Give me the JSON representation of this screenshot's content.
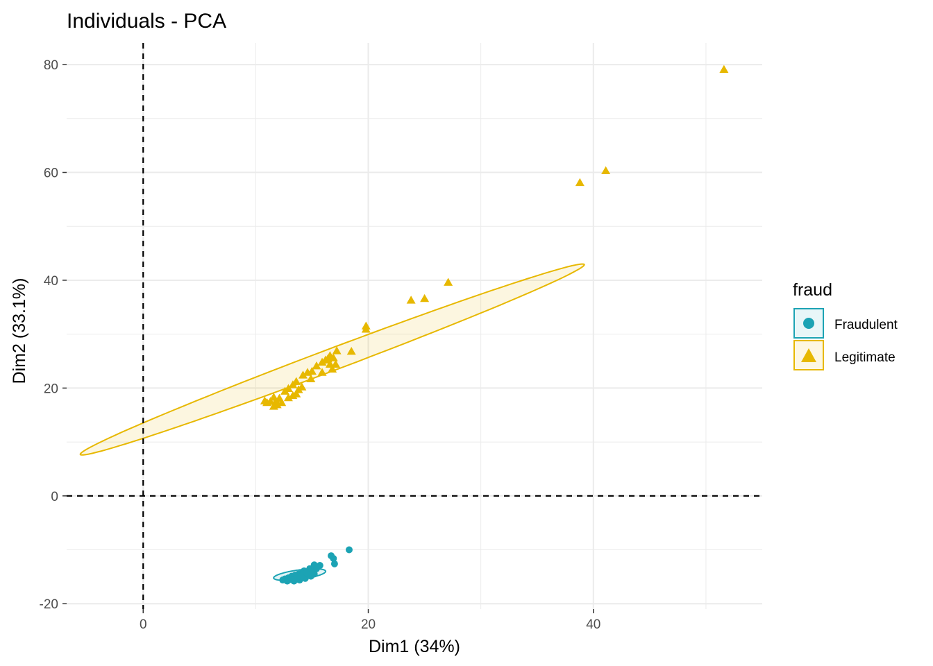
{
  "chart_data": {
    "type": "scatter",
    "title": "Individuals - PCA",
    "xlabel": "Dim1 (34%)",
    "ylabel": "Dim2 (33.1%)",
    "xlim": [
      -6.8,
      55
    ],
    "ylim": [
      -21,
      84
    ],
    "x_ticks": [
      0,
      20,
      40
    ],
    "y_ticks": [
      -20,
      0,
      20,
      40,
      60,
      80
    ],
    "x_tick_labels": [
      "0",
      "20",
      "40"
    ],
    "y_tick_labels": [
      "-20",
      "0",
      "20",
      "40",
      "60",
      "80"
    ],
    "grid": true,
    "reference_lines": {
      "x": 0,
      "y": 0,
      "style": "dashed"
    },
    "legend": {
      "title": "fraud",
      "position": "right"
    },
    "series": [
      {
        "name": "Fraudulent",
        "marker": "circle",
        "color": "#1CA3B4",
        "points": [
          [
            18.3,
            -10.0
          ],
          [
            16.7,
            -11.1
          ],
          [
            16.9,
            -11.6
          ],
          [
            17.0,
            -12.6
          ],
          [
            15.7,
            -12.9
          ],
          [
            15.2,
            -12.8
          ],
          [
            15.4,
            -13.5
          ],
          [
            14.8,
            -13.5
          ],
          [
            14.3,
            -13.9
          ],
          [
            14.1,
            -14.3
          ],
          [
            13.8,
            -14.5
          ],
          [
            13.5,
            -14.7
          ],
          [
            13.2,
            -14.9
          ],
          [
            12.9,
            -15.2
          ],
          [
            12.6,
            -15.4
          ],
          [
            12.4,
            -15.6
          ],
          [
            12.8,
            -15.8
          ],
          [
            13.4,
            -15.8
          ],
          [
            13.9,
            -15.6
          ],
          [
            14.4,
            -15.3
          ],
          [
            14.9,
            -14.9
          ],
          [
            15.2,
            -14.5
          ],
          [
            14.6,
            -14.8
          ],
          [
            14.0,
            -15.1
          ],
          [
            13.6,
            -15.3
          ],
          [
            13.1,
            -15.5
          ],
          [
            14.2,
            -14.6
          ],
          [
            13.7,
            -14.9
          ],
          [
            15.0,
            -14.1
          ],
          [
            14.5,
            -14.2
          ]
        ],
        "ellipse": {
          "cx": 13.9,
          "cy": -14.6,
          "rx": 2.4,
          "ry": 0.85,
          "angle_deg": 17
        }
      },
      {
        "name": "Legitimate",
        "marker": "triangle",
        "color": "#E7B800",
        "points": [
          [
            51.6,
            79.1
          ],
          [
            41.1,
            60.3
          ],
          [
            38.8,
            58.1
          ],
          [
            27.1,
            39.6
          ],
          [
            25.0,
            36.6
          ],
          [
            23.8,
            36.3
          ],
          [
            19.8,
            31.5
          ],
          [
            19.8,
            30.9
          ],
          [
            18.5,
            26.8
          ],
          [
            17.2,
            26.9
          ],
          [
            16.9,
            25.6
          ],
          [
            16.6,
            26.0
          ],
          [
            16.2,
            25.2
          ],
          [
            17.1,
            24.4
          ],
          [
            16.8,
            23.5
          ],
          [
            15.9,
            24.8
          ],
          [
            15.4,
            24.1
          ],
          [
            15.0,
            23.1
          ],
          [
            14.6,
            22.9
          ],
          [
            14.2,
            22.4
          ],
          [
            15.9,
            22.9
          ],
          [
            14.9,
            21.7
          ],
          [
            14.1,
            20.2
          ],
          [
            13.8,
            19.7
          ],
          [
            13.6,
            21.2
          ],
          [
            13.3,
            20.6
          ],
          [
            12.9,
            19.9
          ],
          [
            12.6,
            19.4
          ],
          [
            12.9,
            18.2
          ],
          [
            13.3,
            18.6
          ],
          [
            12.1,
            18.1
          ],
          [
            11.8,
            17.6
          ],
          [
            11.6,
            18.3
          ],
          [
            11.3,
            17.5
          ],
          [
            11.0,
            17.3
          ],
          [
            10.8,
            17.6
          ],
          [
            11.6,
            16.6
          ],
          [
            11.9,
            16.9
          ],
          [
            12.3,
            17.3
          ],
          [
            13.6,
            18.9
          ],
          [
            16.4,
            25.4
          ],
          [
            16.6,
            24.4
          ]
        ],
        "ellipse": {
          "cx": 16.8,
          "cy": 25.3,
          "rx": 28.5,
          "ry": 1.7,
          "angle_deg": 38.3
        }
      }
    ]
  }
}
